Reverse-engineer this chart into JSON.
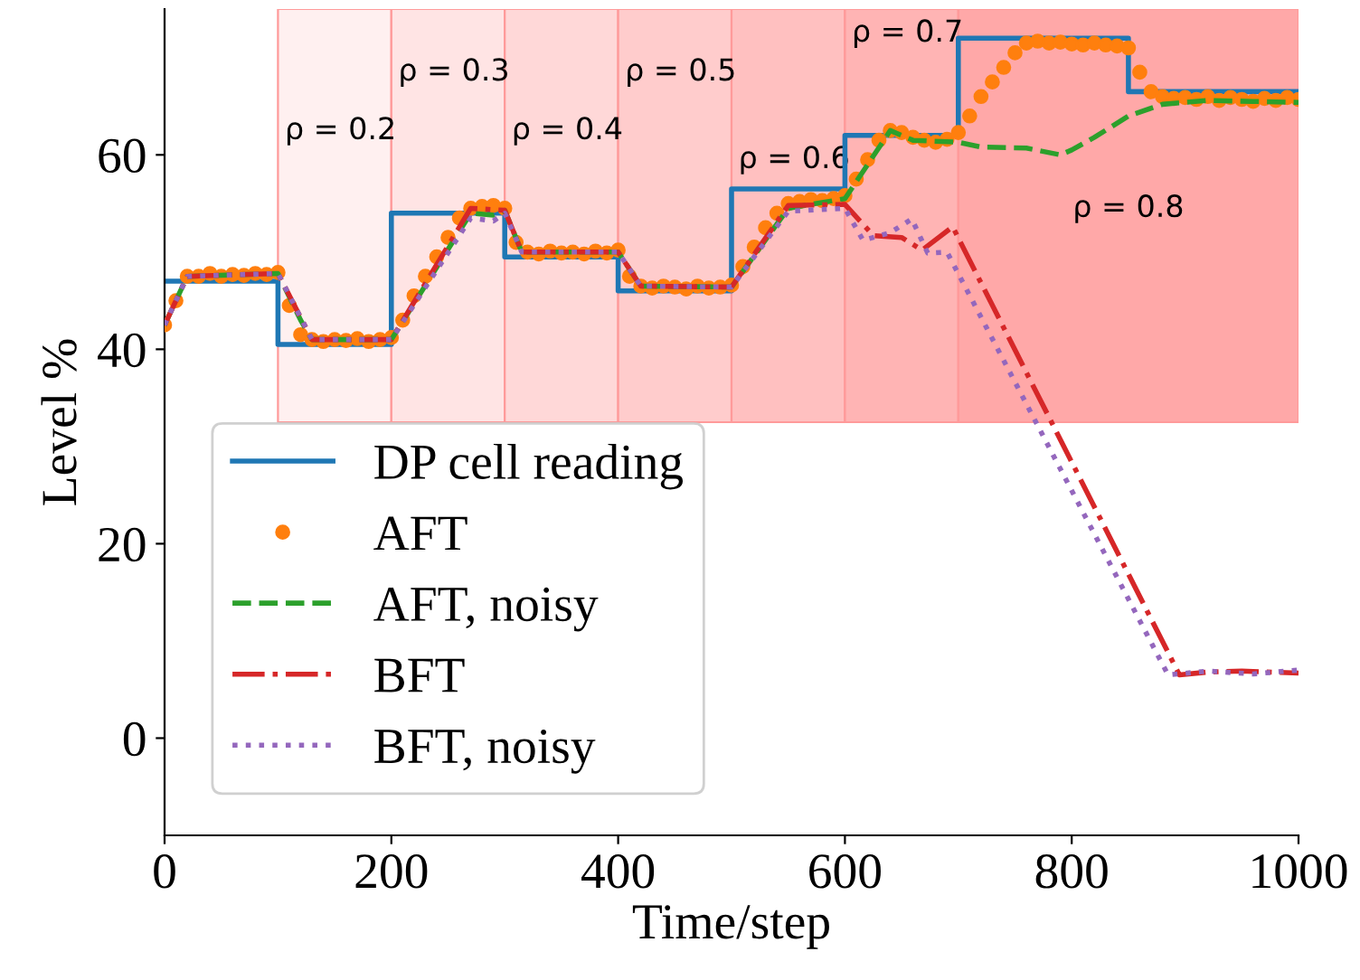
{
  "chart_data": {
    "type": "line",
    "xlabel": "Time/step",
    "ylabel": "Level %",
    "xlim": [
      0,
      1000
    ],
    "ylim": [
      -10,
      75
    ],
    "xticks": [
      0,
      200,
      400,
      600,
      800,
      1000
    ],
    "yticks": [
      0,
      20,
      40,
      60
    ],
    "grid": false,
    "legend": "bottom left",
    "bands": [
      {
        "axis": "x",
        "from": 100,
        "to": 200,
        "label": "ρ = 0.2",
        "color": "#fff0f0"
      },
      {
        "axis": "x",
        "from": 200,
        "to": 300,
        "label": "ρ = 0.3",
        "color": "#ffe4e4"
      },
      {
        "axis": "x",
        "from": 300,
        "to": 400,
        "label": "ρ = 0.4",
        "color": "#ffd8d8"
      },
      {
        "axis": "x",
        "from": 400,
        "to": 500,
        "label": "ρ = 0.5",
        "color": "#ffcccc"
      },
      {
        "axis": "x",
        "from": 500,
        "to": 600,
        "label": "ρ = 0.6",
        "color": "#ffc0c0"
      },
      {
        "axis": "x",
        "from": 600,
        "to": 700,
        "label": "ρ = 0.7",
        "color": "#ffb4b4"
      },
      {
        "axis": "x",
        "from": 700,
        "to": 1000,
        "label": "ρ = 0.8",
        "color": "#ffa8a8"
      }
    ],
    "series": [
      {
        "name": "DP cell reading",
        "type": "step",
        "color": "#1f77b4",
        "line_style": "solid",
        "x": [
          0,
          100,
          200,
          300,
          400,
          500,
          600,
          700,
          850,
          1000
        ],
        "values": [
          47,
          40.5,
          54,
          49.5,
          46,
          56.5,
          62,
          72,
          66.5,
          66.5
        ]
      },
      {
        "name": "AFT",
        "type": "scatter",
        "color": "#ff7f0e",
        "marker": "circle",
        "x": [
          0,
          10,
          20,
          30,
          40,
          50,
          60,
          70,
          80,
          90,
          100,
          110,
          120,
          130,
          140,
          150,
          160,
          170,
          180,
          190,
          200,
          210,
          220,
          230,
          240,
          250,
          260,
          270,
          280,
          290,
          300,
          310,
          320,
          330,
          340,
          350,
          360,
          370,
          380,
          390,
          400,
          410,
          420,
          430,
          440,
          450,
          460,
          470,
          480,
          490,
          500,
          510,
          520,
          530,
          540,
          550,
          560,
          570,
          580,
          590,
          600,
          610,
          620,
          630,
          640,
          650,
          660,
          670,
          680,
          690,
          700,
          710,
          720,
          730,
          740,
          750,
          760,
          770,
          780,
          790,
          800,
          810,
          820,
          830,
          840,
          850,
          860,
          870,
          880,
          890,
          900,
          910,
          920,
          930,
          940,
          950,
          960,
          970,
          980,
          990,
          1000
        ],
        "values": [
          42.5,
          45,
          47.5,
          47.5,
          47.8,
          47.5,
          47.7,
          47.6,
          47.8,
          47.7,
          47.9,
          44.5,
          41.5,
          41,
          40.8,
          41,
          40.9,
          41.1,
          40.8,
          41,
          41.2,
          43,
          45.5,
          47.5,
          49.5,
          51.5,
          53.5,
          54.5,
          54.7,
          54.8,
          54.5,
          51,
          50,
          49.8,
          50.1,
          49.9,
          50,
          49.8,
          50.1,
          49.9,
          50.2,
          47.5,
          46.5,
          46.3,
          46.5,
          46.4,
          46.2,
          46.5,
          46.3,
          46.4,
          46.6,
          48.5,
          50.5,
          52.5,
          54,
          55,
          55.2,
          55.4,
          55.3,
          55.5,
          55.8,
          57.5,
          59.5,
          61.5,
          62.5,
          62.3,
          61.8,
          61.5,
          61.3,
          61.6,
          62.3,
          64,
          66,
          67.5,
          69,
          70.5,
          71.5,
          71.7,
          71.5,
          71.6,
          71.4,
          71.3,
          71.5,
          71.3,
          71.2,
          71,
          68.5,
          66.5,
          66,
          65.8,
          65.9,
          65.7,
          66,
          65.6,
          65.9,
          65.7,
          65.5,
          65.8,
          65.6,
          65.9,
          65.7
        ]
      },
      {
        "name": "AFT, noisy",
        "color": "#2ca02c",
        "line_style": "dashed",
        "x": [
          0,
          20,
          100,
          120,
          130,
          200,
          270,
          290,
          300,
          315,
          400,
          420,
          500,
          550,
          600,
          640,
          660,
          700,
          720,
          760,
          790,
          800,
          820,
          850,
          880,
          920,
          960,
          1000
        ],
        "values": [
          42.5,
          47.5,
          47.8,
          43,
          41,
          41,
          54,
          53.8,
          54.3,
          50,
          50,
          46.5,
          46.4,
          54.5,
          55.5,
          62.5,
          61.5,
          61.3,
          60.8,
          60.7,
          60,
          60.5,
          61.8,
          64,
          65.2,
          65.6,
          65.5,
          65.4
        ]
      },
      {
        "name": "BFT",
        "color": "#d62728",
        "line_style": "dashdot",
        "x": [
          0,
          20,
          100,
          130,
          200,
          270,
          300,
          315,
          400,
          420,
          500,
          550,
          600,
          625,
          650,
          668,
          695,
          895,
          920,
          950,
          1000
        ],
        "values": [
          42.5,
          47.5,
          47.8,
          41,
          41,
          54.5,
          54.3,
          50,
          50,
          46.5,
          46.4,
          54.8,
          54.9,
          51.7,
          51.5,
          50.2,
          52.6,
          6.5,
          6.8,
          6.9,
          6.7
        ]
      },
      {
        "name": "BFT, noisy",
        "color": "#9467bd",
        "line_style": "dotted",
        "x": [
          0,
          20,
          100,
          130,
          200,
          270,
          290,
          300,
          315,
          400,
          420,
          500,
          550,
          600,
          616,
          640,
          659,
          673,
          690,
          885,
          920,
          960,
          1000
        ],
        "values": [
          42.5,
          47.5,
          47.8,
          41,
          41,
          53.5,
          53.2,
          54,
          50,
          50,
          46.5,
          46.4,
          54.2,
          54.5,
          51.2,
          52,
          53.4,
          49.9,
          50,
          6.5,
          6.9,
          6.6,
          7
        ]
      }
    ]
  }
}
